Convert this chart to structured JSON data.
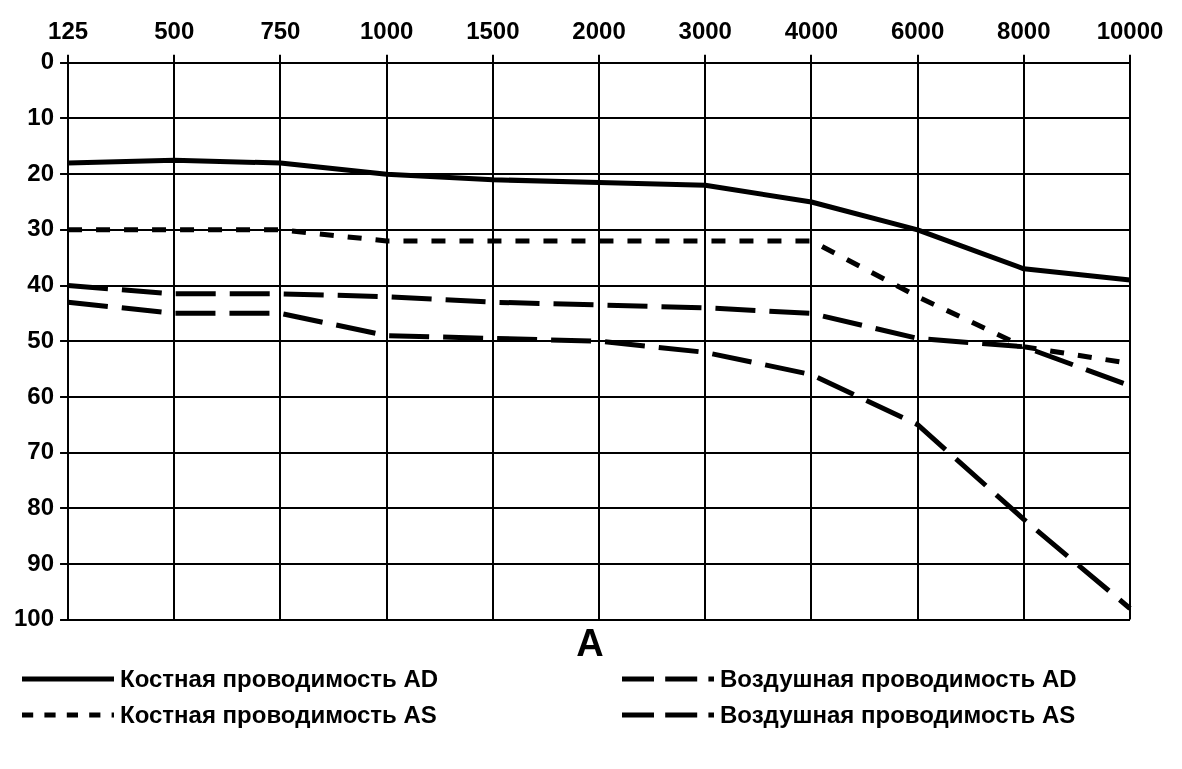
{
  "chart_data": {
    "type": "line",
    "xlabel": "A",
    "categories": [
      "125",
      "500",
      "750",
      "1000",
      "1500",
      "2000",
      "3000",
      "4000",
      "6000",
      "8000",
      "10000"
    ],
    "ylim": [
      100,
      0
    ],
    "yticks": [
      0,
      10,
      20,
      30,
      40,
      50,
      60,
      70,
      80,
      90,
      100
    ],
    "grid": true,
    "legend": "bottom",
    "marker": "none",
    "series": [
      {
        "name": "Костная проводимость AD",
        "color": "#000000",
        "line_style": "solid",
        "values": [
          18,
          17.5,
          18,
          20,
          21,
          21.5,
          22,
          25,
          30,
          37,
          39
        ]
      },
      {
        "name": "Воздушная проводимость AD",
        "color": "#000000",
        "line_style": "dashed",
        "values": [
          40,
          41.5,
          41.5,
          42,
          43,
          43.5,
          44,
          45,
          49.5,
          51,
          58
        ]
      },
      {
        "name": "Костная проводимость AS",
        "color": "#000000",
        "line_style": "dotted",
        "values": [
          30,
          30,
          30,
          32,
          32,
          32,
          32,
          32,
          42,
          51,
          54
        ]
      },
      {
        "name": "Воздушная проводимость AS",
        "color": "#000000",
        "line_style": "dashed",
        "values": [
          43,
          45,
          45,
          49,
          49.5,
          50,
          52,
          56,
          65,
          82,
          98
        ]
      }
    ]
  }
}
